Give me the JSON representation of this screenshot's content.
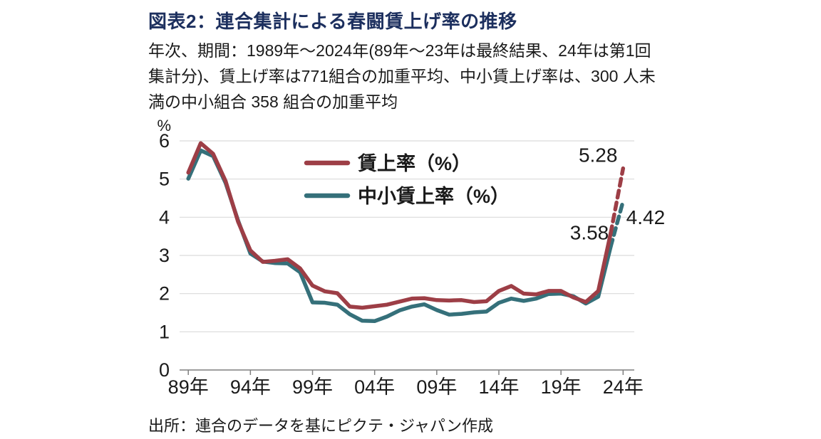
{
  "header": {
    "title": "図表2：連合集計による春闘賃上げ率の推移"
  },
  "description": {
    "line1": "年次、期間：1989年～2024年(89年～23年は最終結果、24年は第1回",
    "line2": "集計分)、賃上げ率は771組合の加重平均、中小賃上げ率は、300 人未",
    "line3": "満の中小組合 358 組合の加重平均"
  },
  "source": "出所：連合のデータを基にピクテ・ジャパン作成",
  "chart_data": {
    "type": "line",
    "title": "連合集計による春闘賃上げ率の推移",
    "unit_label": "%",
    "x": [
      1989,
      1990,
      1991,
      1992,
      1993,
      1994,
      1995,
      1996,
      1997,
      1998,
      1999,
      2000,
      2001,
      2002,
      2003,
      2004,
      2005,
      2006,
      2007,
      2008,
      2009,
      2010,
      2011,
      2012,
      2013,
      2014,
      2015,
      2016,
      2017,
      2018,
      2019,
      2020,
      2021,
      2022,
      2023,
      2024
    ],
    "x_tick_years": [
      1989,
      1994,
      1999,
      2004,
      2009,
      2014,
      2019,
      2024
    ],
    "x_tick_labels": [
      "89年",
      "94年",
      "99年",
      "04年",
      "09年",
      "14年",
      "19年",
      "24年"
    ],
    "ylim": [
      0,
      6
    ],
    "y_ticks": [
      0,
      1,
      2,
      3,
      4,
      5,
      6
    ],
    "grid": "horizontal",
    "legend_position": "inside-top",
    "series": [
      {
        "name": "賃上率（%）",
        "color": "#9d3e46",
        "dash_last_segment": true,
        "values": [
          5.17,
          5.94,
          5.66,
          4.95,
          3.89,
          3.13,
          2.83,
          2.86,
          2.9,
          2.66,
          2.21,
          2.06,
          2.01,
          1.66,
          1.63,
          1.67,
          1.71,
          1.79,
          1.87,
          1.88,
          1.83,
          1.82,
          1.83,
          1.78,
          1.8,
          2.07,
          2.2,
          2.0,
          1.98,
          2.07,
          2.07,
          1.9,
          1.78,
          2.07,
          3.58,
          5.28
        ]
      },
      {
        "name": "中小賃上率（%）",
        "color": "#35707a",
        "dash_last_segment": true,
        "values": [
          5.01,
          5.75,
          5.6,
          4.9,
          3.92,
          3.05,
          2.84,
          2.8,
          2.79,
          2.56,
          1.77,
          1.76,
          1.71,
          1.46,
          1.29,
          1.28,
          1.4,
          1.56,
          1.66,
          1.72,
          1.57,
          1.45,
          1.47,
          1.51,
          1.53,
          1.76,
          1.87,
          1.81,
          1.87,
          1.99,
          2.0,
          1.93,
          1.74,
          1.92,
          3.23,
          4.42
        ]
      }
    ],
    "annotations": [
      {
        "text": "5.28",
        "year": 2023.55,
        "value": 5.45,
        "anchor": "end"
      },
      {
        "text": "3.58",
        "year": 2022.85,
        "value": 3.42,
        "anchor": "end"
      },
      {
        "text": "4.42",
        "year": 2024.25,
        "value": 3.82,
        "anchor": "start"
      }
    ],
    "text_color": "#1a1a1a",
    "grid_color": "#d9d9d9",
    "axis_color": "#7f7f7f"
  }
}
